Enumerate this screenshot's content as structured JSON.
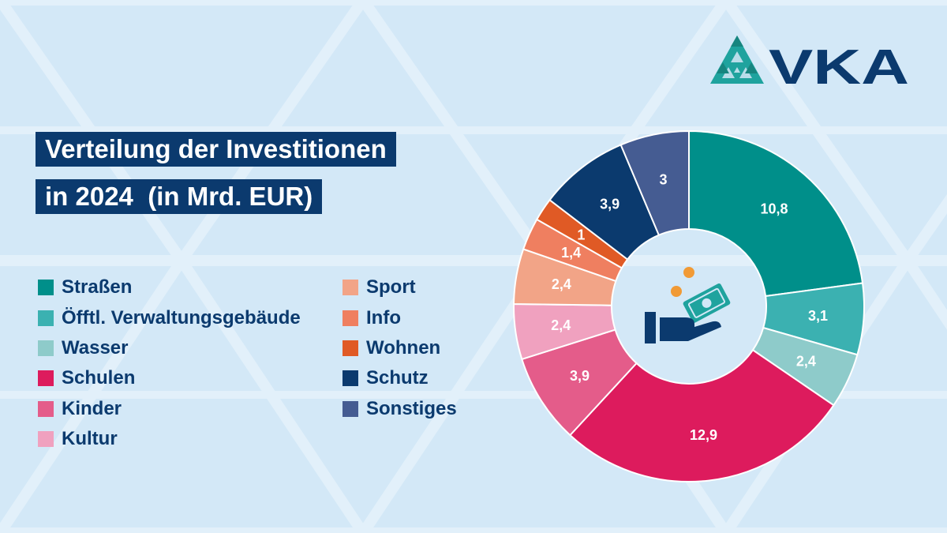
{
  "brand": {
    "name": "VKA"
  },
  "title": {
    "line1": "Verteilung der Investitionen",
    "line2": "in 2024  (in Mrd. EUR)"
  },
  "colors": {
    "background": "#d3e8f7",
    "title_bg": "#0b3a6e",
    "text": "#0b3a6e",
    "logo_teal": "#1fa39e"
  },
  "center_icon": "hand-money-icon",
  "legend_left": [
    {
      "label": "Straßen",
      "color": "#008f8a"
    },
    {
      "label": "Öfftl. Verwaltungsgebäude",
      "color": "#3bb1b1"
    },
    {
      "label": "Wasser",
      "color": "#8ecbca"
    },
    {
      "label": "Schulen",
      "color": "#dd1b5d"
    },
    {
      "label": "Kinder",
      "color": "#e45c8a"
    },
    {
      "label": "Kultur",
      "color": "#f0a1bf"
    }
  ],
  "legend_right": [
    {
      "label": "Sport",
      "color": "#f2a487"
    },
    {
      "label": "Info",
      "color": "#ef7f60"
    },
    {
      "label": "Wohnen",
      "color": "#e05a25"
    },
    {
      "label": "Schutz",
      "color": "#0b3a6e"
    },
    {
      "label": "Sonstiges",
      "color": "#455c92"
    }
  ],
  "chart_data": {
    "type": "pie",
    "style": "donut",
    "title": "Verteilung der Investitionen in 2024 (in Mrd. EUR)",
    "categories": [
      "Straßen",
      "Öfftl. Verwaltungsgebäude",
      "Wasser",
      "Schulen",
      "Kinder",
      "Kultur",
      "Sport",
      "Info",
      "Wohnen",
      "Schutz",
      "Sonstiges"
    ],
    "values": [
      10.8,
      3.1,
      2.4,
      12.9,
      3.9,
      2.4,
      2.4,
      1.4,
      1,
      3.9,
      3
    ],
    "value_labels": [
      "10,8",
      "3,1",
      "2,4",
      "12,9",
      "3,9",
      "2,4",
      "2,4",
      "1,4",
      "1",
      "3,9",
      "3"
    ],
    "colors": [
      "#008f8a",
      "#3bb1b1",
      "#8ecbca",
      "#dd1b5d",
      "#e45c8a",
      "#f0a1bf",
      "#f2a487",
      "#ef7f60",
      "#e05a25",
      "#0b3a6e",
      "#455c92"
    ],
    "legend_position": "left"
  }
}
